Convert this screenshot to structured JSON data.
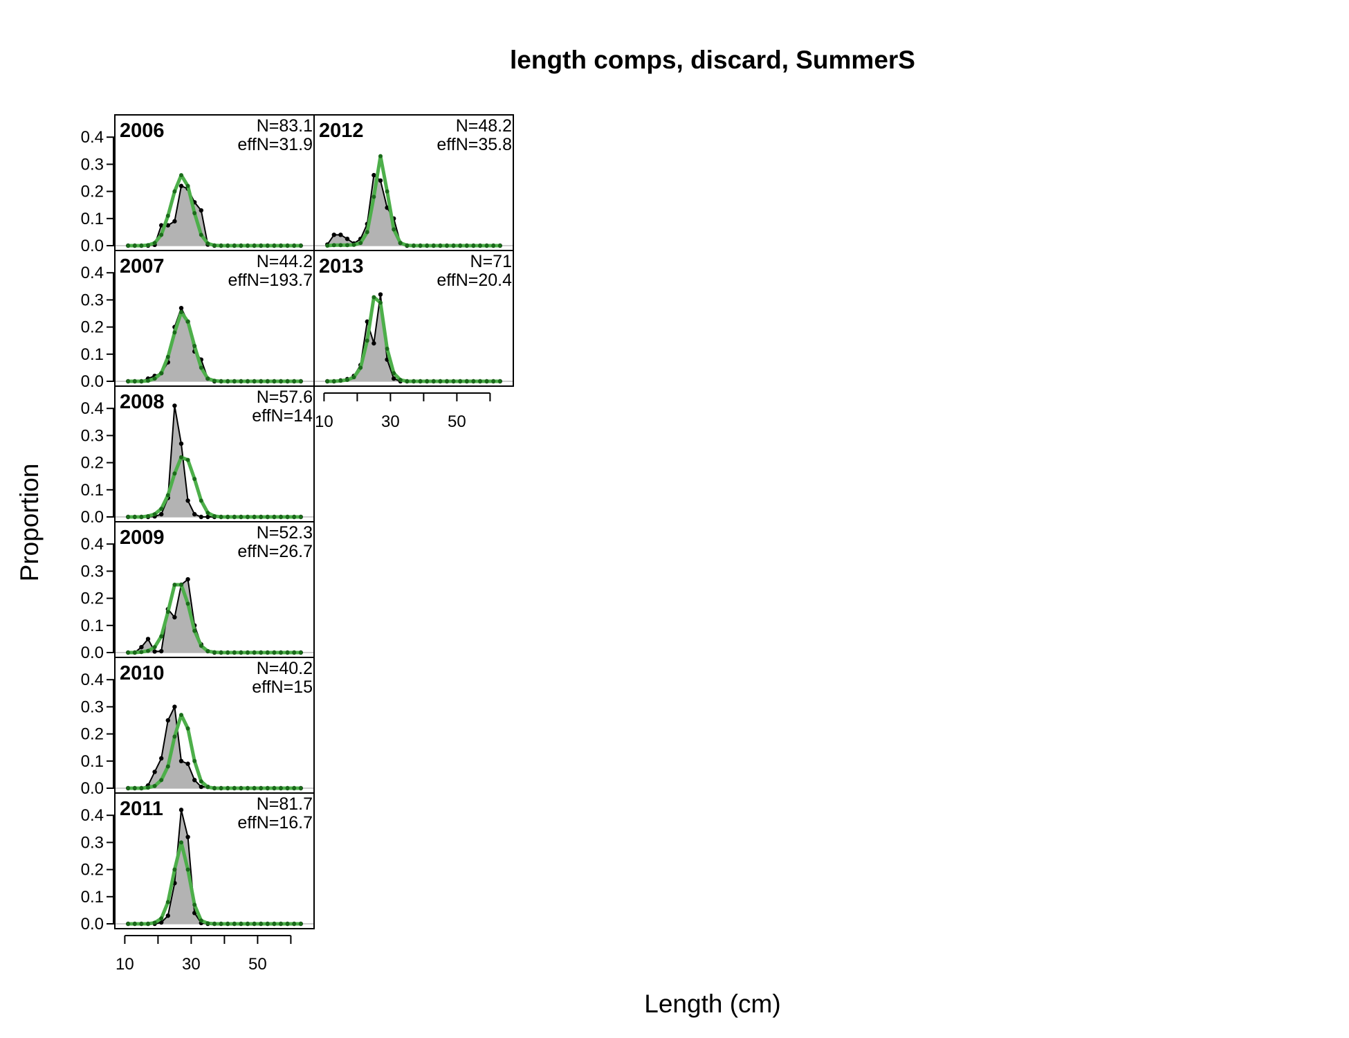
{
  "chart_data": {
    "type": "line",
    "title": "length comps, discard, SummerS",
    "xlabel": "Length (cm)",
    "ylabel": "Proportion",
    "xlim": [
      7,
      67
    ],
    "ylim": [
      0,
      0.45
    ],
    "x_ticks": [
      10,
      30,
      50
    ],
    "x_minor_ticks": [
      10,
      20,
      30,
      40,
      50,
      60
    ],
    "y_ticks": [
      "0.0",
      "0.1",
      "0.2",
      "0.3",
      "0.4"
    ],
    "colors": {
      "observed_fill": "#b3b3b3",
      "observed_line": "#000000",
      "expected_line": "#4daf4a",
      "expected_points": "#1a6b1a",
      "zero_line": "#cccccc"
    },
    "length_bins": [
      11,
      13,
      15,
      17,
      19,
      21,
      23,
      25,
      27,
      29,
      31,
      33,
      35,
      37,
      39,
      41,
      43,
      45,
      47,
      49,
      51,
      53,
      55,
      57,
      59,
      61,
      63
    ],
    "panels": [
      {
        "year": "2006",
        "N": "N=83.1",
        "effN": "effN=31.9",
        "observed": [
          0,
          0,
          0,
          0,
          0.003,
          0.075,
          0.075,
          0.09,
          0.22,
          0.21,
          0.16,
          0.13,
          0.004,
          0,
          0,
          0,
          0,
          0,
          0,
          0,
          0,
          0,
          0,
          0,
          0,
          0,
          0
        ],
        "expected": [
          0,
          0,
          0,
          0.002,
          0.01,
          0.04,
          0.11,
          0.2,
          0.26,
          0.22,
          0.12,
          0.04,
          0.008,
          0.001,
          0,
          0,
          0,
          0,
          0,
          0,
          0,
          0,
          0,
          0,
          0,
          0,
          0
        ]
      },
      {
        "year": "2007",
        "N": "N=44.2",
        "effN": "effN=193.7",
        "observed": [
          0,
          0,
          0,
          0.01,
          0.02,
          0.03,
          0.07,
          0.2,
          0.27,
          0.22,
          0.11,
          0.08,
          0.01,
          0,
          0,
          0,
          0,
          0,
          0,
          0,
          0,
          0,
          0,
          0,
          0,
          0,
          0
        ],
        "expected": [
          0,
          0,
          0,
          0.002,
          0.01,
          0.03,
          0.09,
          0.18,
          0.255,
          0.22,
          0.13,
          0.05,
          0.01,
          0.002,
          0,
          0,
          0,
          0,
          0,
          0,
          0,
          0,
          0,
          0,
          0,
          0,
          0
        ]
      },
      {
        "year": "2008",
        "N": "N=57.6",
        "effN": "effN=14",
        "observed": [
          0,
          0,
          0,
          0,
          0.002,
          0.01,
          0.07,
          0.41,
          0.27,
          0.06,
          0.01,
          0,
          0,
          0,
          0,
          0,
          0,
          0,
          0,
          0,
          0,
          0,
          0,
          0,
          0,
          0,
          0
        ],
        "expected": [
          0,
          0,
          0,
          0.003,
          0.01,
          0.03,
          0.08,
          0.16,
          0.22,
          0.21,
          0.14,
          0.06,
          0.015,
          0.003,
          0,
          0,
          0,
          0,
          0,
          0,
          0,
          0,
          0,
          0,
          0,
          0,
          0
        ]
      },
      {
        "year": "2009",
        "N": "N=52.3",
        "effN": "effN=26.7",
        "observed": [
          0,
          0,
          0.02,
          0.05,
          0.004,
          0.005,
          0.16,
          0.13,
          0.25,
          0.27,
          0.1,
          0.03,
          0.005,
          0,
          0,
          0,
          0,
          0,
          0,
          0,
          0,
          0,
          0,
          0,
          0,
          0,
          0
        ],
        "expected": [
          0,
          0,
          0.002,
          0.006,
          0.02,
          0.06,
          0.15,
          0.25,
          0.25,
          0.18,
          0.08,
          0.025,
          0.005,
          0.001,
          0,
          0,
          0,
          0,
          0,
          0,
          0,
          0,
          0,
          0,
          0,
          0,
          0
        ]
      },
      {
        "year": "2010",
        "N": "N=40.2",
        "effN": "effN=15",
        "observed": [
          0,
          0,
          0,
          0.01,
          0.06,
          0.11,
          0.25,
          0.3,
          0.1,
          0.09,
          0.03,
          0.005,
          0.005,
          0,
          0,
          0,
          0,
          0,
          0,
          0,
          0,
          0,
          0,
          0,
          0,
          0,
          0
        ],
        "expected": [
          0,
          0,
          0,
          0.002,
          0.008,
          0.03,
          0.08,
          0.19,
          0.27,
          0.22,
          0.1,
          0.025,
          0.004,
          0,
          0,
          0,
          0,
          0,
          0,
          0,
          0,
          0,
          0,
          0,
          0,
          0,
          0
        ]
      },
      {
        "year": "2011",
        "N": "N=81.7",
        "effN": "effN=16.7",
        "observed": [
          0,
          0,
          0,
          0,
          0,
          0.005,
          0.03,
          0.15,
          0.42,
          0.32,
          0.04,
          0.003,
          0,
          0,
          0,
          0,
          0,
          0,
          0,
          0,
          0,
          0,
          0,
          0,
          0,
          0,
          0
        ],
        "expected": [
          0,
          0,
          0,
          0,
          0.004,
          0.02,
          0.08,
          0.2,
          0.3,
          0.2,
          0.07,
          0.012,
          0.002,
          0,
          0,
          0,
          0,
          0,
          0,
          0,
          0,
          0,
          0,
          0,
          0,
          0,
          0
        ]
      },
      {
        "year": "2012",
        "N": "N=48.2",
        "effN": "effN=35.8",
        "observed": [
          0.004,
          0.04,
          0.04,
          0.025,
          0.008,
          0.025,
          0.08,
          0.26,
          0.24,
          0.14,
          0.1,
          0.01,
          0,
          0,
          0,
          0,
          0,
          0,
          0,
          0,
          0,
          0,
          0,
          0,
          0,
          0,
          0
        ],
        "expected": [
          0,
          0.002,
          0.002,
          0.002,
          0.003,
          0.01,
          0.05,
          0.18,
          0.33,
          0.2,
          0.06,
          0.01,
          0.001,
          0,
          0,
          0,
          0,
          0,
          0,
          0,
          0,
          0,
          0,
          0,
          0,
          0,
          0
        ]
      },
      {
        "year": "2013",
        "N": "N=71",
        "effN": "effN=20.4",
        "observed": [
          0,
          0,
          0.003,
          0.008,
          0.02,
          0.06,
          0.22,
          0.14,
          0.32,
          0.08,
          0.01,
          0,
          0,
          0,
          0,
          0,
          0,
          0,
          0,
          0,
          0,
          0,
          0,
          0,
          0,
          0,
          0
        ],
        "expected": [
          0,
          0,
          0.002,
          0.005,
          0.015,
          0.05,
          0.15,
          0.31,
          0.29,
          0.12,
          0.03,
          0.005,
          0,
          0,
          0,
          0,
          0,
          0,
          0,
          0,
          0,
          0,
          0,
          0,
          0,
          0,
          0
        ]
      }
    ]
  }
}
